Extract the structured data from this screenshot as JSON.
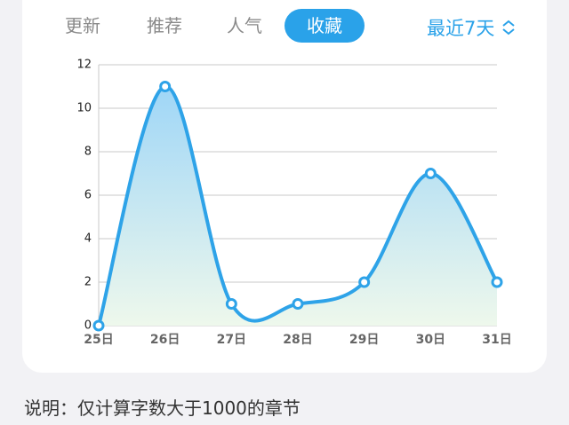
{
  "tabs": [
    {
      "label": "更新",
      "selected": false
    },
    {
      "label": "推荐",
      "selected": false
    },
    {
      "label": "人气",
      "selected": false
    },
    {
      "label": "收藏",
      "selected": true
    }
  ],
  "range_selector": "最近7天",
  "chart_data": {
    "type": "line",
    "categories": [
      "25日",
      "26日",
      "27日",
      "28日",
      "29日",
      "30日",
      "31日"
    ],
    "values": [
      0,
      11,
      1,
      1,
      2,
      7,
      2
    ],
    "color": "#2ea3e8",
    "smooth": true,
    "area": true,
    "ylim": [
      0,
      12
    ],
    "yticks": [
      0,
      2,
      4,
      6,
      8,
      10,
      12
    ],
    "grid": true
  },
  "note": "说明：仅计算字数大于1000的章节"
}
